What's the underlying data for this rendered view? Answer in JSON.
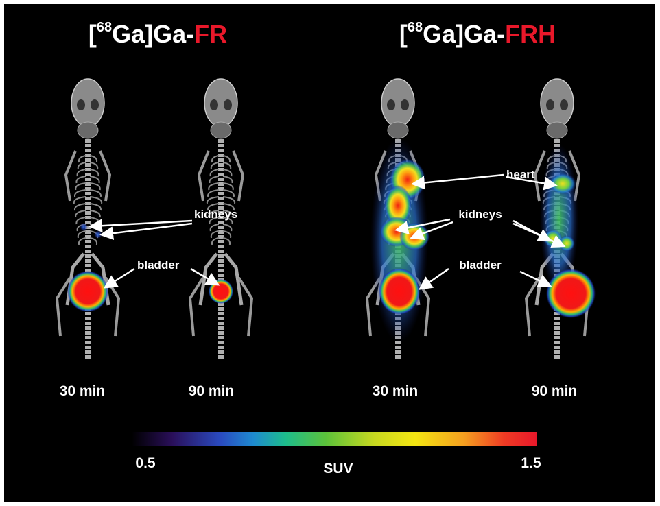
{
  "panels": [
    {
      "title": {
        "open": "[",
        "isotope": "68",
        "element": "Ga]Ga-",
        "tracer": "FR"
      },
      "times": [
        "30 min",
        "90 min"
      ],
      "annotations": [
        "kidneys",
        "bladder"
      ]
    },
    {
      "title": {
        "open": "[",
        "isotope": "68",
        "element": "Ga]Ga-",
        "tracer": "FRH"
      },
      "times": [
        "30 min",
        "90 min"
      ],
      "annotations": [
        "heart",
        "kidneys",
        "bladder"
      ]
    }
  ],
  "colorbar": {
    "min": 0.5,
    "max": 1.5,
    "label": "SUV"
  }
}
